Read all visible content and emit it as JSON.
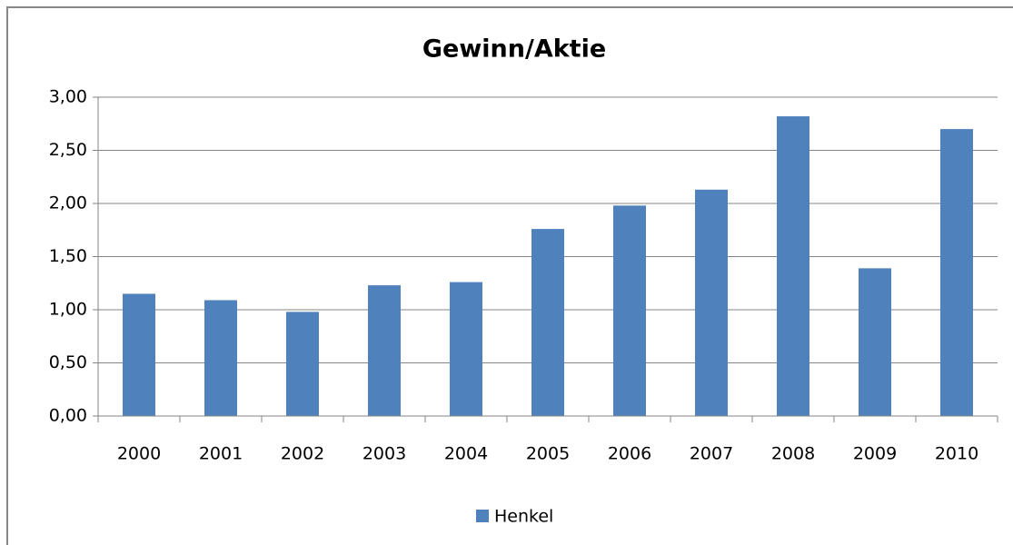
{
  "chart_data": {
    "type": "bar",
    "title": "Gewinn/Aktie",
    "categories": [
      "2000",
      "2001",
      "2002",
      "2003",
      "2004",
      "2005",
      "2006",
      "2007",
      "2008",
      "2009",
      "2010"
    ],
    "series": [
      {
        "name": "Henkel",
        "color": "#4f81bd",
        "values": [
          1.15,
          1.09,
          0.98,
          1.23,
          1.26,
          1.76,
          1.98,
          2.13,
          2.82,
          1.39,
          2.7
        ]
      }
    ],
    "ylim": [
      0,
      3
    ],
    "yticks": [
      {
        "value": 0,
        "label": "0,00"
      },
      {
        "value": 0.5,
        "label": "0,50"
      },
      {
        "value": 1,
        "label": "1,00"
      },
      {
        "value": 1.5,
        "label": "1,50"
      },
      {
        "value": 2,
        "label": "2,00"
      },
      {
        "value": 2.5,
        "label": "2,50"
      },
      {
        "value": 3,
        "label": "3,00"
      }
    ],
    "grid": true,
    "legend": "bottom"
  }
}
